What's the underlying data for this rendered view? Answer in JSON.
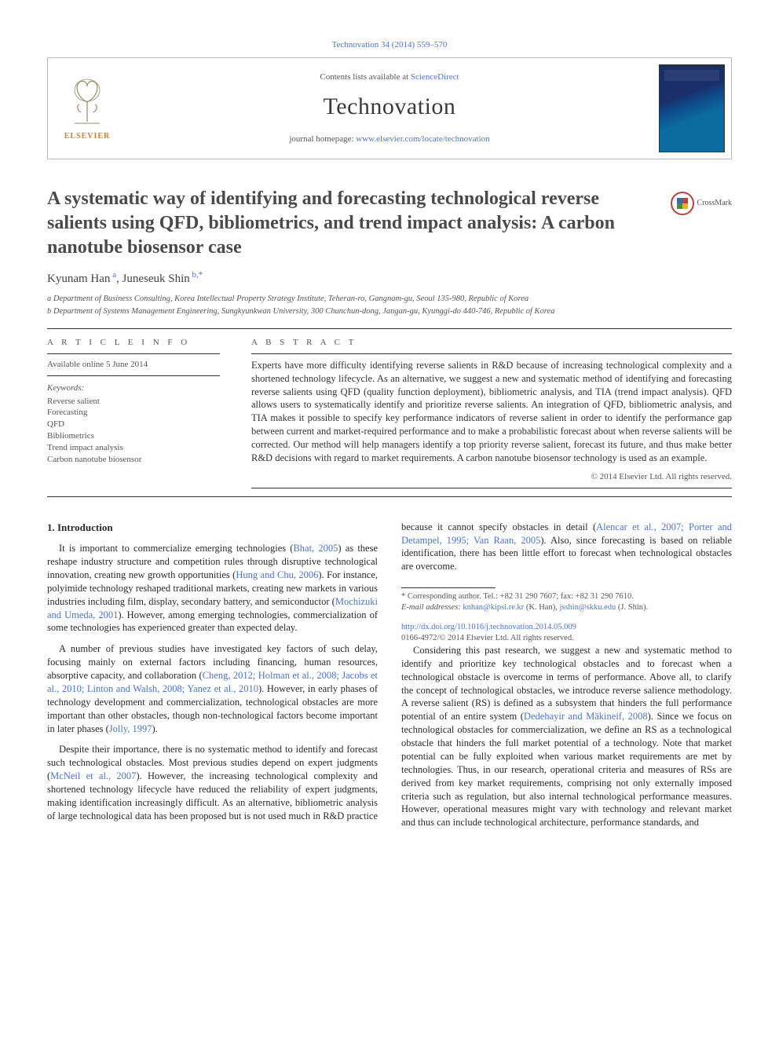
{
  "citation": "Technovation 34 (2014) 559–570",
  "header": {
    "contents_pre": "Contents lists available at ",
    "contents_link": "ScienceDirect",
    "journal": "Technovation",
    "homepage_pre": "journal homepage: ",
    "homepage_url": "www.elsevier.com/locate/technovation",
    "publisher": "ELSEVIER"
  },
  "crossmark_label": "CrossMark",
  "title": "A systematic way of identifying and forecasting technological reverse salients using QFD, bibliometrics, and trend impact analysis: A carbon nanotube biosensor case",
  "authors_html": "Kyunam Han<sup class='sup'> a</sup>, Juneseuk Shin<sup class='sup'> b,*</sup>",
  "affiliations": [
    "a Department of Business Consulting, Korea Intellectual Property Strategy Institute, Teheran-ro, Gangnam-gu, Seoul 135-980, Republic of Korea",
    "b Department of Systems Management Engineering, Sungkyunkwan University, 300 Chunchun-dong, Jangan-gu, Kyunggi-do 440-746, Republic of Korea"
  ],
  "article_info_label": "A R T I C L E  I N F O",
  "abstract_label": "A B S T R A C T",
  "available": "Available online 5 June 2014",
  "keywords_head": "Keywords:",
  "keywords": [
    "Reverse salient",
    "Forecasting",
    "QFD",
    "Bibliometrics",
    "Trend impact analysis",
    "Carbon nanotube biosensor"
  ],
  "abstract": "Experts have more difficulty identifying reverse salients in R&D because of increasing technological complexity and a shortened technology lifecycle. As an alternative, we suggest a new and systematic method of identifying and forecasting reverse salients using QFD (quality function deployment), bibliometric analysis, and TIA (trend impact analysis). QFD allows users to systematically identify and prioritize reverse salients. An integration of QFD, bibliometric analysis, and TIA makes it possible to specify key performance indicators of reverse salient in order to identify the performance gap between current and market-required performance and to make a probabilistic forecast about when reverse salients will be corrected. Our method will help managers identify a top priority reverse salient, forecast its future, and thus make better R&D decisions with regard to market requirements. A carbon nanotube biosensor technology is used as an example.",
  "copyright": "© 2014 Elsevier Ltd. All rights reserved.",
  "section_head": "1.  Introduction",
  "paras": [
    "It is important to commercialize emerging technologies (<a class='ref' href='#'>Bhat, 2005</a>) as these reshape industry structure and competition rules through disruptive technological innovation, creating new growth opportunities (<a class='ref' href='#'>Hung and Chu, 2006</a>). For instance, polyimide technology reshaped traditional markets, creating new markets in various industries including film, display, secondary battery, and semiconductor (<a class='ref' href='#'>Mochizuki and Umeda, 2001</a>). However, among emerging technologies, commercialization of some technologies has experienced greater than expected delay.",
    "A number of previous studies have investigated key factors of such delay, focusing mainly on external factors including financing, human resources, absorptive capacity, and collaboration (<a class='ref' href='#'>Cheng, 2012; Holman et al., 2008; Jacobs et al., 2010; Linton and Walsh, 2008; Yanez et al., 2010</a>). However, in early phases of technology development and commercialization, technological obstacles are more important than other obstacles, though non-technological factors become important in later phases (<a class='ref' href='#'>Jolly, 1997</a>).",
    "Despite their importance, there is no systematic method to identify and forecast such technological obstacles. Most previous studies depend on expert judgments (<a class='ref' href='#'>McNeil et al., 2007</a>). However, the increasing technological complexity and shortened technology lifecycle have reduced the reliability of expert judgments, making identification increasingly difficult. As an alternative, bibliometric analysis of large technological data has been proposed but is not used much in R&D practice because it cannot specify obstacles in detail (<a class='ref' href='#'>Alencar et al., 2007; Porter and Detampel, 1995; Van Raan, 2005</a>). Also, since forecasting is based on reliable identification, there has been little effort to forecast when technological obstacles are overcome.",
    "Considering this past research, we suggest a new and systematic method to identify and prioritize key technological obstacles and to forecast when a technological obstacle is overcome in terms of performance. Above all, to clarify the concept of technological obstacles, we introduce reverse salience methodology. A reverse salient (RS) is defined as a subsystem that hinders the full performance potential of an entire system (<a class='ref' href='#'>Dedehayir and Mäkineif, 2008</a>). Since we focus on technological obstacles for commercialization, we define an RS as a technological obstacle that hinders the full market potential of a technology. Note that market potential can be fully exploited when various market requirements are met by technologies. Thus, in our research, operational criteria and measures of RSs are derived from key market requirements, comprising not only externally imposed criteria such as regulation, but also internal technological performance measures. However, operational measures might vary with technology and relevant market and thus can include technological architecture, performance standards, and"
  ],
  "footnote_corr": "* Corresponding author. Tel.: +82 31 290 7607; fax: +82 31 290 7610.",
  "footnote_email_pre": "E-mail addresses: ",
  "footnote_email1": "knhan@kipsi.re.kr",
  "footnote_email1_post": " (K. Han), ",
  "footnote_email2": "jsshin@skku.edu",
  "footnote_email2_post": " (J. Shin).",
  "doi": "http://dx.doi.org/10.1016/j.technovation.2014.05.009",
  "doi_sub": "0166-4972/© 2014 Elsevier Ltd. All rights reserved.",
  "colors": {
    "link": "#4a74c8",
    "text": "#2a2a2a",
    "rule": "#333333",
    "elsevier": "#e67817"
  }
}
